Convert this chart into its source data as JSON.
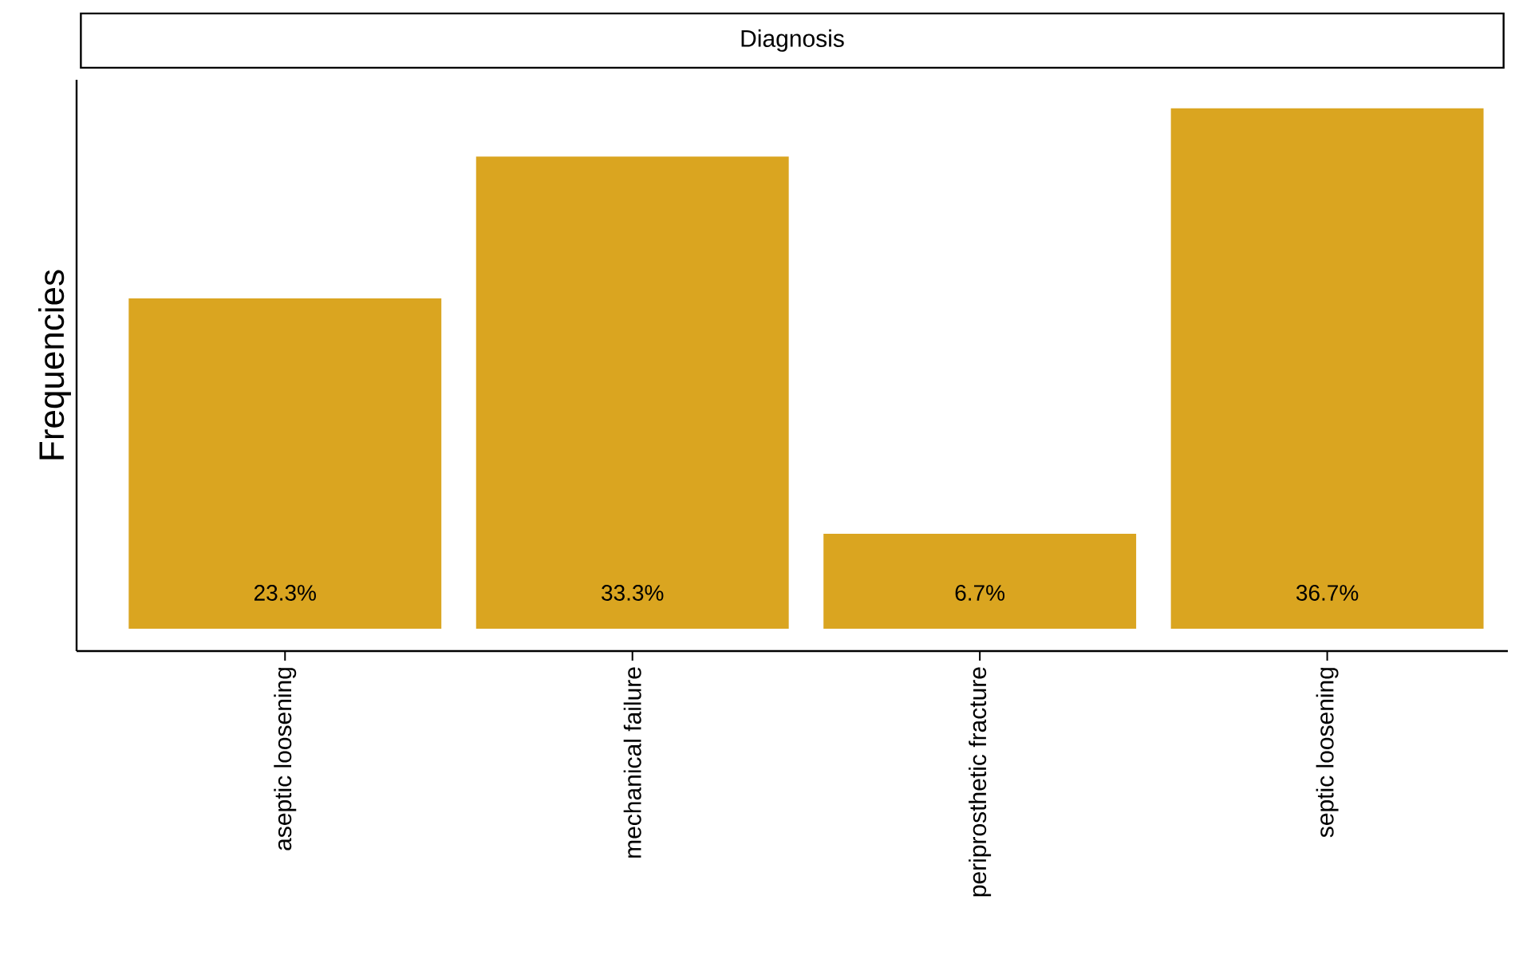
{
  "chart_data": {
    "type": "bar",
    "title": "Diagnosis",
    "ylabel": "Frequencies",
    "categories": [
      "aseptic loosening",
      "mechanical failure",
      "periprosthetic fracture",
      "septic loosening"
    ],
    "values": [
      23.3,
      33.3,
      6.7,
      36.7
    ],
    "value_labels": [
      "23.3%",
      "33.3%",
      "6.7%",
      "36.7%"
    ],
    "color": "#daa520"
  }
}
